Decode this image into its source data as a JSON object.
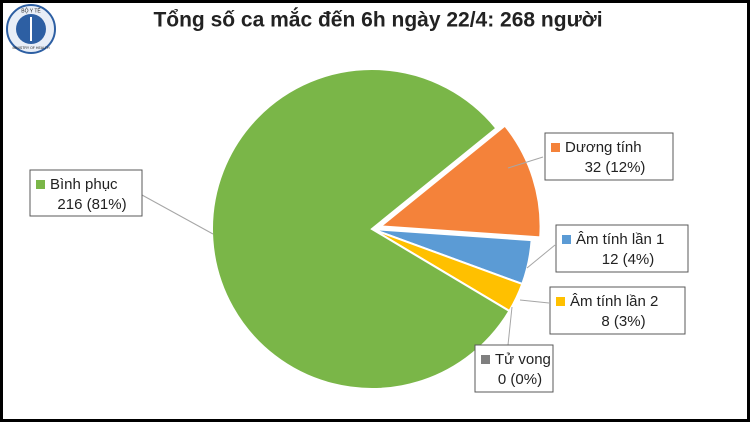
{
  "logo": {
    "top": "BỘ Y TẾ",
    "bottom": "MINISTRY OF HEALTH"
  },
  "chart_data": {
    "type": "pie",
    "title": "Tổng số ca mắc đến 6h ngày 22/4: 268 người",
    "categories": [
      "Dương tính",
      "Âm tính lần 1",
      "Âm tính lần 2",
      "Tử vong",
      "Bình phục"
    ],
    "values": [
      32,
      12,
      8,
      0,
      216
    ],
    "value_labels": [
      "32 (12%)",
      "12 (4%)",
      "8 (3%)",
      "0 (0%)",
      "216 (81%)"
    ],
    "colors": [
      "#f4823a",
      "#5b9bd5",
      "#ffc000",
      "#7f7f7f",
      "#7ab648"
    ]
  }
}
